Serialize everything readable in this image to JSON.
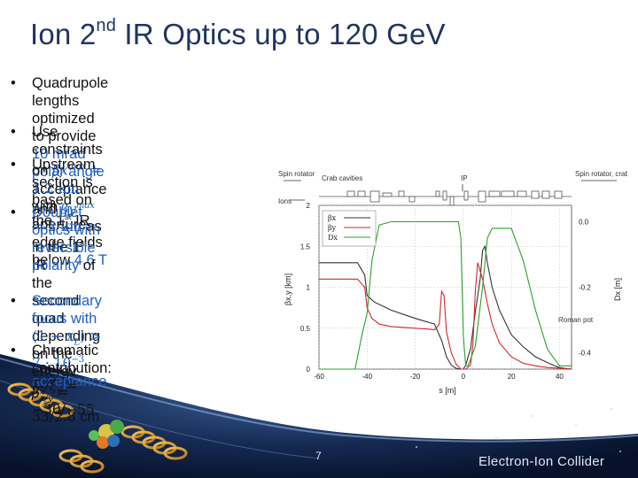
{
  "slide": {
    "title_prefix": "Ion 2",
    "title_sup": "nd",
    "title_suffix": " IR Optics up to 120 GeV",
    "bullet_char": "•",
    "page_number": "7",
    "brand": "Electron-Ion Collider",
    "colors": {
      "title": "#1f3560",
      "accent": "#1f5fbf",
      "bg_dark": "#0c1a36"
    }
  },
  "bullets": {
    "b1": {
      "t1": "Quadrupole lengths optimized to provide ",
      "t2": "10 mrad polar angle",
      "t3": " acceptance with",
      "t4": "aperture-edge fields below ",
      "t5": "4.6 T"
    },
    "b2": {
      "t1": "Use constraints on ",
      "m1": "βx",
      "m1sup": "max",
      "m1rest": " = 1.2 km",
      "t2": " and ",
      "m2": "βy",
      "m2sup": "max",
      "m2rest": " = 2 km",
      "t3": " as in the 1",
      "t3sup": "st",
      "t4": " IR"
    },
    "b3": {
      "t1": "Upstream section is based on",
      "t2": "the 1",
      "t2sup": "st",
      "t3": " IR"
    },
    "b4": {
      "t1": "Doublet optics with reversible",
      "t2": "polarity",
      "t3": " of the second quad",
      "t4": "depending on the energy",
      "m1": "β",
      "m1sup": "*",
      "m1sub": "x/y",
      "m1rest": " = 33/2.8",
      "t5": " cm"
    },
    "b5": {
      "t1": "Secondary focus with",
      "m1": "(1 − x",
      "m1sub": "L",
      "m1rest": ") > 7 · 10",
      "m1sup": "−3",
      "t2": " acceptance"
    },
    "b6": {
      "t1": "Chromatic contribution:",
      "m1": "ξ",
      "m1sub1": "x",
      "m1mid": "/ξ",
      "m1sub2": "y",
      "m1rest": " = −30/−55"
    }
  },
  "chart_data": {
    "type": "line",
    "xlabel": "s [m]",
    "ylabel_left": "βx,y [km]",
    "ylabel_right": "Dx [m]",
    "xlim": [
      -60,
      45
    ],
    "ylim_left": [
      0,
      2
    ],
    "ylim_right": [
      -0.45,
      0.05
    ],
    "x_ticks": [
      "-60",
      "-40",
      "-20",
      "0",
      "20",
      "40"
    ],
    "y_ticks_left": [
      "0",
      "0.5",
      "1",
      "1.5",
      "2"
    ],
    "y_ticks_right": [
      "-0.4",
      "-0.2",
      "0.0"
    ],
    "legend": [
      "βx",
      "βy",
      "Dx"
    ],
    "legend_placement": "top-left",
    "annotations": {
      "spin_rotator_left": "Spin rotator",
      "crab_cavities_left": "Crab cavities",
      "ip": "IP",
      "spin_rotator_right": "Spin rotator, crab cavities",
      "ions": "Ions",
      "roman_pot": "Roman pot"
    },
    "series": [
      {
        "name": "βx",
        "color": "#333333",
        "x": [
          -60,
          -50,
          -44,
          -41,
          -40,
          -37,
          -30,
          -20,
          -12,
          -9,
          -7,
          -5,
          -3,
          -1,
          0,
          1,
          3,
          5,
          7,
          8,
          9,
          10,
          12,
          15,
          20,
          25,
          30,
          35,
          38,
          40,
          42,
          45
        ],
        "y": [
          1.3,
          1.3,
          1.3,
          1.15,
          0.9,
          0.82,
          0.72,
          0.62,
          0.55,
          0.35,
          0.15,
          0.05,
          0.01,
          0.0,
          0.0,
          0.05,
          0.25,
          0.7,
          1.1,
          1.45,
          1.5,
          1.3,
          1.0,
          0.72,
          0.42,
          0.27,
          0.15,
          0.08,
          0.04,
          0.02,
          0.01,
          0.0
        ]
      },
      {
        "name": "βy",
        "color": "#d62728",
        "x": [
          -60,
          -50,
          -44,
          -41,
          -40,
          -38,
          -35,
          -30,
          -20,
          -15,
          -12,
          -10,
          -9,
          -8,
          -7,
          -5,
          -3,
          -1,
          0,
          1,
          3,
          4,
          5,
          6,
          8,
          10,
          12,
          15,
          20,
          25,
          30,
          35,
          40,
          45
        ],
        "y": [
          1.1,
          1.1,
          1.1,
          1.0,
          0.75,
          0.62,
          0.55,
          0.52,
          0.5,
          0.49,
          0.48,
          0.55,
          0.95,
          0.9,
          0.45,
          0.2,
          0.06,
          0.0,
          0.0,
          0.0,
          0.05,
          0.3,
          0.95,
          1.3,
          1.1,
          0.8,
          0.55,
          0.32,
          0.15,
          0.07,
          0.04,
          0.02,
          0.01,
          0.0
        ]
      },
      {
        "name": "Dx",
        "color": "#2ca02c",
        "x": [
          -60,
          -50,
          -45,
          -42,
          -40,
          -38,
          -35,
          -30,
          -20,
          -10,
          -5,
          -2,
          -1,
          0,
          1,
          2,
          5,
          8,
          10,
          12,
          14,
          16,
          18,
          20,
          25,
          30,
          35,
          40,
          45
        ],
        "y": [
          -0.45,
          -0.45,
          -0.45,
          -0.34,
          -0.28,
          -0.12,
          -0.01,
          0.0,
          0.0,
          0.0,
          0.0,
          0.0,
          -0.05,
          -0.35,
          -0.44,
          -0.44,
          -0.38,
          -0.2,
          -0.05,
          -0.02,
          -0.02,
          -0.02,
          -0.02,
          -0.02,
          -0.12,
          -0.27,
          -0.39,
          -0.44,
          -0.44
        ]
      }
    ]
  }
}
